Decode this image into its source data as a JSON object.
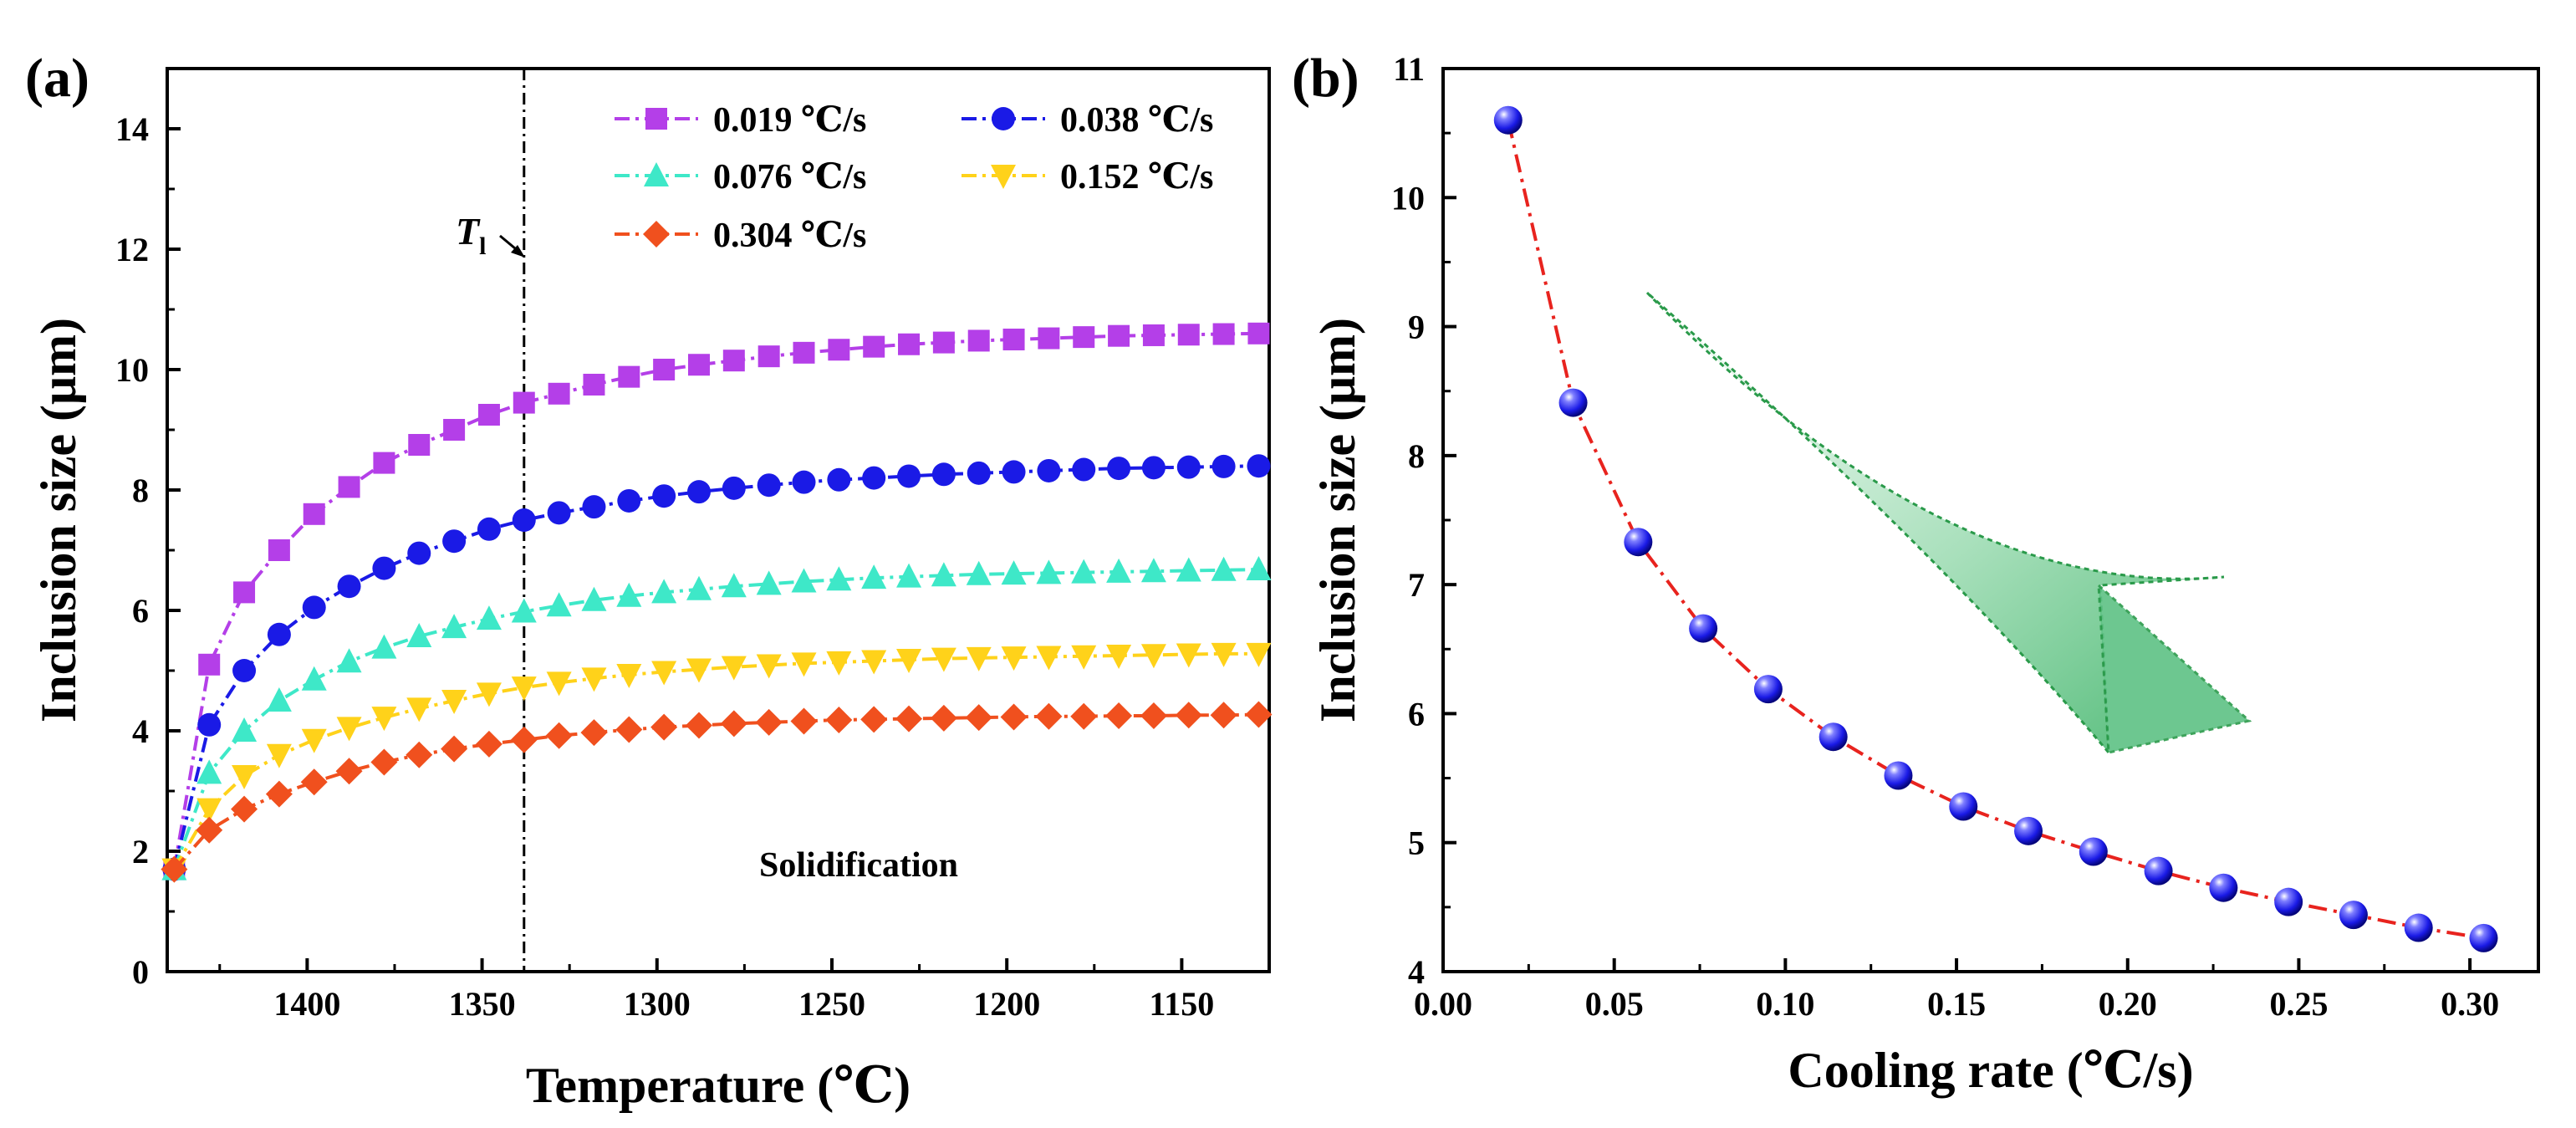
{
  "chart_data": [
    {
      "type": "line",
      "panel_label": "(a)",
      "xlabel": "Temperature (℃)",
      "ylabel": "Inclusion size (μm)",
      "xlim": [
        1440,
        1125
      ],
      "ylim": [
        0,
        15
      ],
      "xticks": [
        1400,
        1350,
        1300,
        1250,
        1200,
        1150
      ],
      "yticks": [
        0,
        2,
        4,
        6,
        8,
        10,
        12,
        14
      ],
      "vline": {
        "x": 1338,
        "label_main": "T",
        "label_sub": "l"
      },
      "annotation": "Solidification",
      "x": [
        1438,
        1428,
        1418,
        1408,
        1398,
        1388,
        1378,
        1368,
        1358,
        1348,
        1338,
        1328,
        1318,
        1308,
        1298,
        1288,
        1278,
        1268,
        1258,
        1248,
        1238,
        1228,
        1218,
        1208,
        1198,
        1188,
        1178,
        1168,
        1158,
        1148,
        1138,
        1128
      ],
      "series": [
        {
          "name": "0.019 ℃/s",
          "color": "#b43fe8",
          "marker": "square",
          "values": [
            1.7,
            5.1,
            6.3,
            7.0,
            7.6,
            8.05,
            8.45,
            8.75,
            9.0,
            9.25,
            9.45,
            9.6,
            9.75,
            9.88,
            10.0,
            10.08,
            10.15,
            10.22,
            10.28,
            10.33,
            10.38,
            10.42,
            10.45,
            10.48,
            10.5,
            10.52,
            10.54,
            10.56,
            10.57,
            10.58,
            10.59,
            10.6
          ]
        },
        {
          "name": "0.038 ℃/s",
          "color": "#1a1ae6",
          "marker": "circle",
          "values": [
            1.7,
            4.1,
            5.0,
            5.6,
            6.05,
            6.4,
            6.7,
            6.95,
            7.15,
            7.35,
            7.5,
            7.62,
            7.72,
            7.82,
            7.9,
            7.97,
            8.03,
            8.08,
            8.13,
            8.17,
            8.2,
            8.23,
            8.26,
            8.28,
            8.3,
            8.32,
            8.34,
            8.36,
            8.37,
            8.38,
            8.39,
            8.4
          ]
        },
        {
          "name": "0.076 ℃/s",
          "color": "#3ee8c8",
          "marker": "triangle-up",
          "values": [
            1.7,
            3.3,
            4.0,
            4.5,
            4.85,
            5.15,
            5.38,
            5.57,
            5.72,
            5.86,
            5.98,
            6.08,
            6.17,
            6.24,
            6.3,
            6.35,
            6.4,
            6.44,
            6.48,
            6.51,
            6.54,
            6.56,
            6.58,
            6.6,
            6.61,
            6.62,
            6.63,
            6.64,
            6.65,
            6.66,
            6.67,
            6.68
          ]
        },
        {
          "name": "0.152 ℃/s",
          "color": "#ffd21a",
          "marker": "triangle-down",
          "values": [
            1.7,
            2.7,
            3.25,
            3.6,
            3.85,
            4.05,
            4.22,
            4.37,
            4.5,
            4.62,
            4.72,
            4.8,
            4.87,
            4.93,
            4.98,
            5.02,
            5.06,
            5.09,
            5.12,
            5.14,
            5.16,
            5.18,
            5.2,
            5.21,
            5.22,
            5.23,
            5.24,
            5.25,
            5.26,
            5.27,
            5.28,
            5.28
          ]
        },
        {
          "name": "0.304 ℃/s",
          "color": "#f0501e",
          "marker": "diamond",
          "values": [
            1.7,
            2.35,
            2.7,
            2.95,
            3.15,
            3.33,
            3.48,
            3.6,
            3.7,
            3.78,
            3.85,
            3.92,
            3.97,
            4.02,
            4.06,
            4.09,
            4.12,
            4.14,
            4.16,
            4.18,
            4.19,
            4.2,
            4.21,
            4.22,
            4.23,
            4.24,
            4.24,
            4.25,
            4.25,
            4.26,
            4.26,
            4.27
          ]
        }
      ]
    },
    {
      "type": "line",
      "panel_label": "(b)",
      "xlabel": "Cooling rate (℃/s)",
      "ylabel": "Inclusion size (μm)",
      "xlim": [
        0.0,
        0.32
      ],
      "ylim": [
        4,
        11
      ],
      "xticks": [
        "0.00",
        "0.05",
        "0.10",
        "0.15",
        "0.20",
        "0.25",
        "0.30"
      ],
      "yticks": [
        "4",
        "5",
        "6",
        "7",
        "8",
        "9",
        "10",
        "11"
      ],
      "series": [
        {
          "name": "Inclusion size",
          "color": "#1a1ae6",
          "line_color": "#e8231e",
          "marker": "sphere",
          "x": [
            0.019,
            0.038,
            0.057,
            0.076,
            0.095,
            0.114,
            0.133,
            0.152,
            0.171,
            0.19,
            0.209,
            0.228,
            0.247,
            0.266,
            0.285,
            0.304
          ],
          "values": [
            10.6,
            8.41,
            7.33,
            6.66,
            6.19,
            5.82,
            5.52,
            5.28,
            5.09,
            4.93,
            4.78,
            4.65,
            4.54,
            4.44,
            4.34,
            4.26
          ]
        }
      ],
      "arrow_annotation": "decreasing trend"
    }
  ]
}
